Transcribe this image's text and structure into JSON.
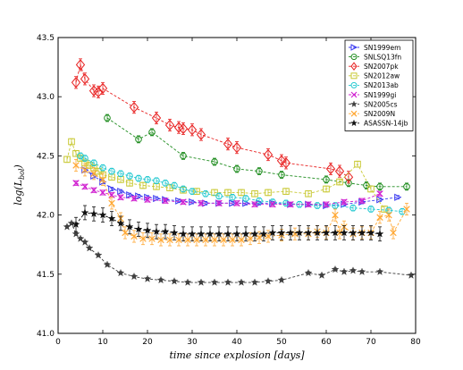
{
  "chart_data": {
    "type": "scatter",
    "xlabel": "time since explosion [days]",
    "ylabel": "log(L_bol)",
    "xlim": [
      0,
      80
    ],
    "ylim": [
      41.0,
      43.5
    ],
    "xticks": [
      "0",
      "10",
      "20",
      "30",
      "40",
      "50",
      "60",
      "70",
      "80"
    ],
    "yticks": [
      "41.0",
      "41.5",
      "42.0",
      "42.5",
      "43.0",
      "43.5"
    ],
    "grid": false,
    "legend_position": "top-right",
    "series": [
      {
        "name": "SN1999em",
        "color": "#3a3af0",
        "marker": "triangle-right",
        "err": 0.015,
        "x": [
          6,
          8,
          10,
          12,
          14,
          16,
          18,
          20,
          22,
          24,
          27,
          30,
          33,
          36,
          39,
          42,
          45,
          48,
          52,
          56,
          60,
          64,
          68,
          72,
          76
        ],
        "y": [
          42.38,
          42.33,
          42.28,
          42.22,
          42.2,
          42.17,
          42.16,
          42.15,
          42.14,
          42.13,
          42.12,
          42.11,
          42.1,
          42.1,
          42.1,
          42.1,
          42.1,
          42.1,
          42.09,
          42.09,
          42.08,
          42.09,
          42.11,
          42.13,
          42.15
        ]
      },
      {
        "name": "SNLSQ13fn",
        "color": "#1e8c1e",
        "marker": "circle-bar",
        "err": 0.03,
        "x": [
          11,
          18,
          21,
          28,
          35,
          40,
          45,
          50,
          60,
          65,
          69,
          72,
          78
        ],
        "y": [
          42.82,
          42.64,
          42.7,
          42.5,
          42.45,
          42.39,
          42.37,
          42.34,
          42.3,
          42.27,
          42.25,
          42.24,
          42.24
        ]
      },
      {
        "name": "SN2007pk",
        "color": "#e82020",
        "marker": "diamond",
        "err": 0.05,
        "x": [
          4,
          5,
          6,
          8,
          9,
          10,
          17,
          22,
          25,
          27,
          28,
          30,
          32,
          38,
          40,
          47,
          50,
          51,
          61,
          63,
          65
        ],
        "y": [
          43.12,
          43.27,
          43.15,
          43.05,
          43.04,
          43.07,
          42.91,
          42.82,
          42.76,
          42.74,
          42.73,
          42.72,
          42.68,
          42.6,
          42.57,
          42.51,
          42.46,
          42.44,
          42.39,
          42.37,
          42.32
        ]
      },
      {
        "name": "SN2012aw",
        "color": "#c8c832",
        "marker": "square",
        "err": 0.025,
        "x": [
          2,
          3,
          4,
          5,
          6,
          7,
          8,
          9,
          10,
          12,
          14,
          16,
          19,
          22,
          25,
          28,
          31,
          35,
          38,
          41,
          44,
          47,
          51,
          56,
          60,
          63,
          67,
          70,
          73
        ],
        "y": [
          42.47,
          42.62,
          42.52,
          42.48,
          42.44,
          42.42,
          42.4,
          42.37,
          42.34,
          42.32,
          42.3,
          42.27,
          42.25,
          42.24,
          42.23,
          42.21,
          42.2,
          42.19,
          42.19,
          42.19,
          42.18,
          42.19,
          42.2,
          42.18,
          42.22,
          42.28,
          42.43,
          42.22,
          42.05
        ]
      },
      {
        "name": "SN2013ab",
        "color": "#22c8d0",
        "marker": "circle",
        "err": 0.025,
        "x": [
          5,
          6,
          8,
          10,
          12,
          14,
          16,
          18,
          20,
          22,
          24,
          26,
          28,
          30,
          33,
          36,
          39,
          42,
          45,
          48,
          51,
          54,
          58,
          62,
          66,
          70,
          74,
          77
        ],
        "y": [
          42.5,
          42.48,
          42.44,
          42.4,
          42.37,
          42.35,
          42.33,
          42.31,
          42.3,
          42.29,
          42.27,
          42.25,
          42.22,
          42.2,
          42.18,
          42.16,
          42.15,
          42.14,
          42.12,
          42.11,
          42.1,
          42.09,
          42.08,
          42.08,
          42.06,
          42.05,
          42.04,
          42.03
        ]
      },
      {
        "name": "SN1999gi",
        "color": "#d020d0",
        "marker": "x",
        "err": 0.02,
        "x": [
          4,
          6,
          8,
          10,
          12,
          14,
          17,
          20,
          24,
          28,
          32,
          36,
          40,
          44,
          48,
          52,
          56,
          60,
          64,
          68,
          72
        ],
        "y": [
          42.27,
          42.24,
          42.21,
          42.19,
          42.17,
          42.15,
          42.14,
          42.13,
          42.12,
          42.11,
          42.1,
          42.1,
          42.1,
          42.09,
          42.09,
          42.09,
          42.09,
          42.09,
          42.11,
          42.12,
          42.18
        ]
      },
      {
        "name": "SN2005cs",
        "color": "#404040",
        "marker": "star",
        "err": 0.012,
        "x": [
          2,
          3,
          4,
          5,
          6,
          7,
          9,
          11,
          14,
          17,
          20,
          23,
          26,
          29,
          32,
          35,
          38,
          41,
          44,
          47,
          50,
          56,
          59,
          62,
          64,
          66,
          68,
          72,
          79
        ],
        "y": [
          41.9,
          41.93,
          41.84,
          41.8,
          41.77,
          41.72,
          41.66,
          41.58,
          41.51,
          41.48,
          41.46,
          41.45,
          41.44,
          41.43,
          41.43,
          41.43,
          41.43,
          41.43,
          41.43,
          41.44,
          41.45,
          41.51,
          41.49,
          41.54,
          41.52,
          41.53,
          41.52,
          41.52,
          41.49
        ]
      },
      {
        "name": "SN2009N",
        "color": "#ffa834",
        "marker": "x",
        "err": 0.05,
        "x": [
          4,
          6,
          8,
          10,
          12,
          14,
          15,
          17,
          19,
          21,
          23,
          25,
          27,
          29,
          31,
          33,
          35,
          37,
          39,
          41,
          43,
          45,
          47,
          50,
          53,
          56,
          58,
          60,
          62,
          63,
          64,
          66,
          68,
          70,
          72,
          74,
          75,
          78
        ],
        "y": [
          42.42,
          42.38,
          42.35,
          42.3,
          42.1,
          41.97,
          41.85,
          41.82,
          41.8,
          41.8,
          41.79,
          41.79,
          41.79,
          41.79,
          41.79,
          41.79,
          41.79,
          41.79,
          41.79,
          41.79,
          41.8,
          41.81,
          41.82,
          41.83,
          41.84,
          41.84,
          41.86,
          41.85,
          42.0,
          41.85,
          41.9,
          41.84,
          41.85,
          41.85,
          41.98,
          42.0,
          41.85,
          42.05
        ]
      },
      {
        "name": "ASASSN-14jb",
        "color": "#111111",
        "marker": "star",
        "err": 0.06,
        "x": [
          4,
          6,
          8,
          10,
          12,
          14,
          16,
          18,
          20,
          22,
          24,
          26,
          28,
          30,
          32,
          34,
          36,
          38,
          40,
          42,
          44,
          46,
          48,
          50,
          52,
          54,
          56,
          58,
          60,
          62,
          64,
          66,
          68,
          70,
          72
        ],
        "y": [
          41.92,
          42.02,
          42.01,
          42.0,
          41.97,
          41.93,
          41.9,
          41.88,
          41.87,
          41.86,
          41.86,
          41.85,
          41.84,
          41.84,
          41.84,
          41.84,
          41.84,
          41.84,
          41.84,
          41.84,
          41.84,
          41.84,
          41.85,
          41.85,
          41.85,
          41.85,
          41.85,
          41.85,
          41.85,
          41.85,
          41.85,
          41.85,
          41.85,
          41.85,
          41.84
        ]
      }
    ]
  }
}
